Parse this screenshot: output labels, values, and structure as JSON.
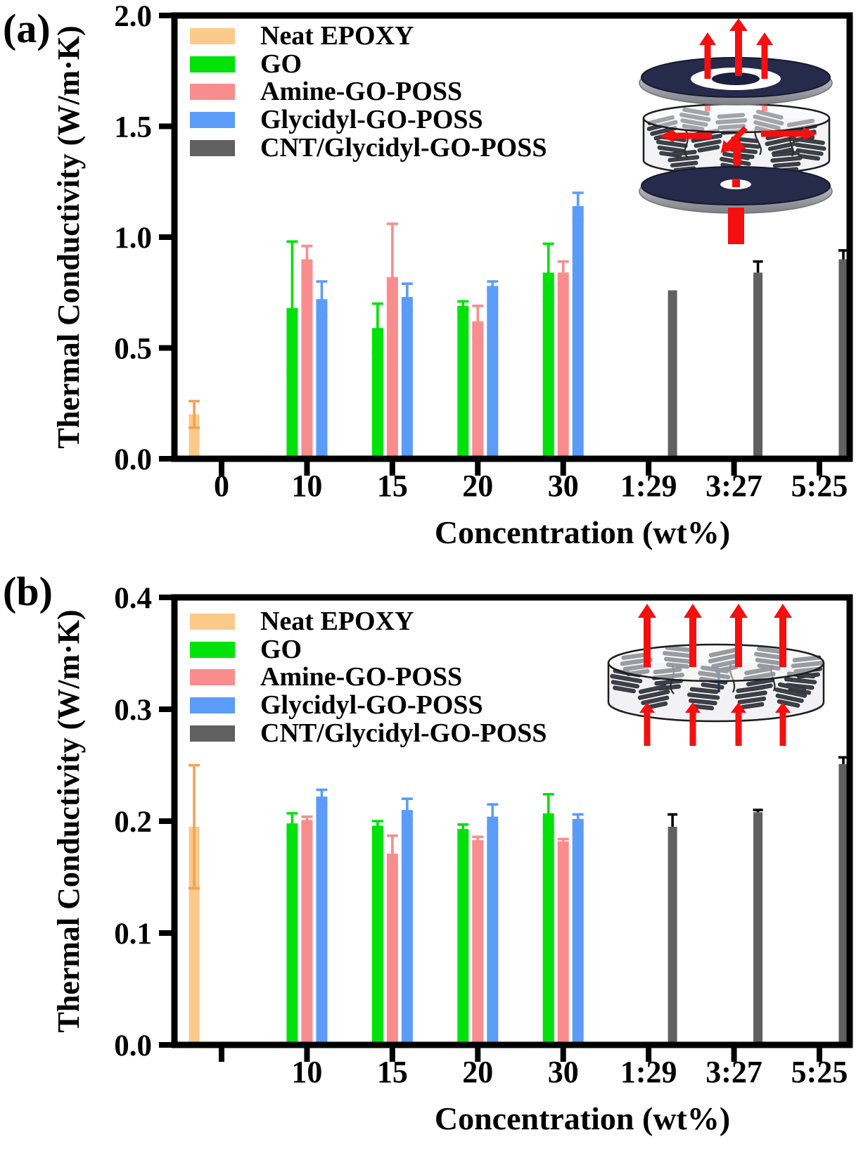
{
  "page": {
    "panel_a_label": "(a)",
    "panel_b_label": "(b)"
  },
  "colors": {
    "neat_epoxy": "#FBCA8B",
    "neat_epoxy_error": "#F2A255",
    "go": "#00E20A",
    "amine_go_poss": "#F98D8D",
    "glycidyl_go_poss": "#5B9CF8",
    "cnt_glycidyl_go_poss": "#606060",
    "cnt_error": "#000000",
    "axis": "#000000",
    "arrow_red": "#F50F0F",
    "disc_navy": "#262B4B",
    "disc_hole": "#1B2040",
    "sheet_gray": "#3E4148"
  },
  "legend": {
    "items": [
      {
        "label": "Neat EPOXY",
        "color": "#FBCA8B"
      },
      {
        "label": "GO",
        "color": "#00E20A"
      },
      {
        "label": "Amine-GO-POSS",
        "color": "#F98D8D"
      },
      {
        "label": "Glycidyl-GO-POSS",
        "color": "#5B9CF8"
      },
      {
        "label": "CNT/Glycidyl-GO-POSS",
        "color": "#606060"
      }
    ]
  },
  "chart_data": [
    {
      "type": "bar",
      "panel": "a",
      "xlabel": "Concentration (wt%)",
      "ylabel": "Thermal Conductivity (W/m·K)",
      "ylim": [
        0,
        2.0
      ],
      "ytick_labels": [
        "0.0",
        "0.5",
        "1.0",
        "1.5",
        "2.0"
      ],
      "yticks": [
        0,
        0.5,
        1.0,
        1.5,
        2.0
      ],
      "grid": false,
      "legend_position": "upper-left-inside",
      "categories": [
        "0",
        "10",
        "15",
        "20",
        "30",
        "1:29",
        "3:27",
        "5:25"
      ],
      "series": [
        {
          "name": "Neat EPOXY",
          "color": "#FBCA8B",
          "error_color": "#F2A255",
          "error_style": "full",
          "values": [
            0.2,
            null,
            null,
            null,
            null,
            null,
            null,
            null
          ],
          "errors": [
            0.06,
            null,
            null,
            null,
            null,
            null,
            null,
            null
          ]
        },
        {
          "name": "GO",
          "color": "#00E20A",
          "error_color": "#00E20A",
          "error_style": "full",
          "values": [
            null,
            0.68,
            0.59,
            0.69,
            0.84,
            null,
            null,
            null
          ],
          "errors": [
            null,
            0.3,
            0.11,
            0.02,
            0.13,
            null,
            null,
            null
          ]
        },
        {
          "name": "Amine-GO-POSS",
          "color": "#F98D8D",
          "error_color": "#F98D8D",
          "error_style": "full",
          "values": [
            null,
            0.9,
            0.82,
            0.62,
            0.84,
            null,
            null,
            null
          ],
          "errors": [
            null,
            0.06,
            0.24,
            0.07,
            0.05,
            null,
            null,
            null
          ]
        },
        {
          "name": "Glycidyl-GO-POSS",
          "color": "#5B9CF8",
          "error_color": "#5B9CF8",
          "error_style": "full",
          "values": [
            null,
            0.72,
            0.73,
            0.78,
            1.14,
            null,
            null,
            null
          ],
          "errors": [
            null,
            0.08,
            0.06,
            0.02,
            0.06,
            null,
            null,
            null
          ]
        },
        {
          "name": "CNT/Glycidyl-GO-POSS",
          "color": "#606060",
          "error_color": "#000000",
          "error_style": "upper",
          "values": [
            null,
            null,
            null,
            null,
            null,
            0.76,
            0.84,
            0.9
          ],
          "errors": [
            null,
            null,
            null,
            null,
            null,
            null,
            0.05,
            0.04
          ]
        }
      ]
    },
    {
      "type": "bar",
      "panel": "b",
      "xlabel": "Concentration (wt%)",
      "ylabel": "Thermal Conductivity (W/m·K)",
      "ylim": [
        0,
        0.4
      ],
      "ytick_labels": [
        "0.0",
        "0.1",
        "0.2",
        "0.3",
        "0.4"
      ],
      "yticks": [
        0,
        0.1,
        0.2,
        0.3,
        0.4
      ],
      "grid": false,
      "legend_position": "upper-left-inside",
      "categories": [
        "",
        "10",
        "15",
        "20",
        "30",
        "1:29",
        "3:27",
        "5:25"
      ],
      "series": [
        {
          "name": "Neat EPOXY",
          "color": "#FBCA8B",
          "error_color": "#F2A255",
          "error_style": "full",
          "values": [
            0.195,
            null,
            null,
            null,
            null,
            null,
            null,
            null
          ],
          "errors": [
            0.055,
            null,
            null,
            null,
            null,
            null,
            null,
            null
          ]
        },
        {
          "name": "GO",
          "color": "#00E20A",
          "error_color": "#00E20A",
          "error_style": "full",
          "values": [
            null,
            0.198,
            0.196,
            0.193,
            0.207,
            null,
            null,
            null
          ],
          "errors": [
            null,
            0.009,
            0.004,
            0.004,
            0.017,
            null,
            null,
            null
          ]
        },
        {
          "name": "Amine-GO-POSS",
          "color": "#F98D8D",
          "error_color": "#F98D8D",
          "error_style": "full",
          "values": [
            null,
            0.201,
            0.171,
            0.183,
            0.182,
            null,
            null,
            null
          ],
          "errors": [
            null,
            0.003,
            0.016,
            0.003,
            0.002,
            null,
            null,
            null
          ]
        },
        {
          "name": "Glycidyl-GO-POSS",
          "color": "#5B9CF8",
          "error_color": "#5B9CF8",
          "error_style": "full",
          "values": [
            null,
            0.222,
            0.21,
            0.204,
            0.202,
            null,
            null,
            null
          ],
          "errors": [
            null,
            0.006,
            0.01,
            0.011,
            0.004,
            null,
            null,
            null
          ]
        },
        {
          "name": "CNT/Glycidyl-GO-POSS",
          "color": "#606060",
          "error_color": "#000000",
          "error_style": "upper",
          "values": [
            null,
            null,
            null,
            null,
            null,
            0.195,
            0.208,
            0.251
          ],
          "errors": [
            null,
            null,
            null,
            null,
            null,
            0.011,
            0.002,
            0.006
          ]
        }
      ]
    }
  ]
}
